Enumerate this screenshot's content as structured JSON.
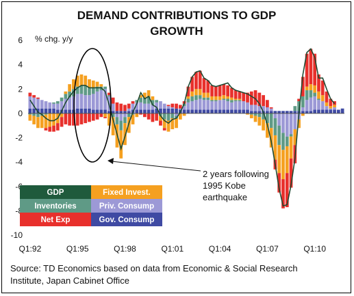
{
  "chart_data": {
    "type": "bar",
    "title_line1": "DEMAND CONTRIBUTIONS TO GDP",
    "title_line2": "GROWTH",
    "ylabel": "% chg. y/y",
    "ylim": [
      -10,
      6
    ],
    "y_ticks": [
      "6",
      "4",
      "2",
      "0",
      "-2",
      "-4",
      "-6",
      "-8",
      "-10"
    ],
    "x_ticks": [
      "Q1:92",
      "Q1:95",
      "Q1:98",
      "Q1:01",
      "Q1:04",
      "Q1:07",
      "Q1:10"
    ],
    "annotation_lines": [
      "2 years following",
      "1995 Kobe",
      "earthquake"
    ],
    "source_lines": [
      "Source: TD Economics based on data from Economic & Social Research",
      "Institute, Japan Cabinet Office"
    ],
    "legend": [
      {
        "label": "GDP",
        "color": "#1f5a3c",
        "text_color": "#ffffff"
      },
      {
        "label": "Fixed Invest.",
        "color": "#f5a020",
        "text_color": "#ffffff"
      },
      {
        "label": "Inventories",
        "color": "#5f9a86",
        "text_color": "#ffffff"
      },
      {
        "label": "Priv. Consump",
        "color": "#9c99d6",
        "text_color": "#ffffff"
      },
      {
        "label": "Net Exp",
        "color": "#e8302c",
        "text_color": "#ffffff"
      },
      {
        "label": "Gov. Consump",
        "color": "#3f4aa3",
        "text_color": "#ffffff"
      }
    ],
    "colors": {
      "fixed": "#f5a020",
      "inventories": "#5f9a86",
      "private": "#9c99d6",
      "net": "#e8302c",
      "gov": "#3f4aa3",
      "gdp": "#1f5a3c"
    },
    "quarters_start": "Q1:92",
    "series": [
      {
        "name": "Gov. Consump",
        "values": [
          0.4,
          0.4,
          0.4,
          0.4,
          0.4,
          0.4,
          0.4,
          0.3,
          0.3,
          0.3,
          0.3,
          0.3,
          0.4,
          0.4,
          0.4,
          0.4,
          0.3,
          0.3,
          0.3,
          0.3,
          0.2,
          0.2,
          0.2,
          0.2,
          0.2,
          0.2,
          0.3,
          0.3,
          0.3,
          0.3,
          0.3,
          0.3,
          0.4,
          0.4,
          0.4,
          0.4,
          0.4,
          0.4,
          0.3,
          0.3,
          0.3,
          0.3,
          0.3,
          0.3,
          0.3,
          0.3,
          0.3,
          0.3,
          0.3,
          0.3,
          0.3,
          0.3,
          0.3,
          0.3,
          0.3,
          0.3,
          0.2,
          0.2,
          0.2,
          0.2,
          0.2,
          0.2,
          0.2,
          0.2,
          0.2,
          0.2,
          0.2,
          0.2,
          0.2,
          0.2,
          0.2,
          0.2,
          0.3,
          0.3,
          0.3,
          0.3,
          0.3,
          0.3,
          0.3,
          0.4
        ]
      },
      {
        "name": "Priv. Consump",
        "values": [
          1.0,
          0.9,
          0.8,
          0.7,
          0.6,
          0.5,
          0.4,
          0.5,
          0.7,
          0.9,
          1.0,
          1.1,
          1.2,
          1.2,
          1.1,
          1.1,
          1.3,
          1.5,
          1.6,
          1.7,
          1.2,
          0.6,
          -0.3,
          -0.6,
          -0.3,
          0.2,
          0.5,
          0.6,
          0.6,
          0.5,
          0.5,
          0.4,
          0.5,
          0.6,
          0.4,
          0.2,
          0.1,
          -0.2,
          0.1,
          0.3,
          0.6,
          0.7,
          0.8,
          0.9,
          0.8,
          0.8,
          0.7,
          0.7,
          0.8,
          0.8,
          0.7,
          0.6,
          0.7,
          0.7,
          0.7,
          0.6,
          0.5,
          0.5,
          0.4,
          0.4,
          0.3,
          0.2,
          -0.4,
          -1.0,
          -1.6,
          -1.9,
          -1.7,
          -1.3,
          -0.5,
          0.3,
          0.9,
          1.1,
          1.1,
          0.8,
          0.7,
          0.3,
          0.1,
          0.2
        ]
      },
      {
        "name": "Inventories",
        "values": [
          -0.1,
          -0.2,
          -0.3,
          -0.2,
          -0.1,
          0.0,
          0.1,
          0.2,
          0.3,
          0.4,
          0.5,
          0.6,
          0.6,
          0.7,
          0.8,
          0.6,
          0.5,
          0.4,
          0.3,
          0.2,
          0.1,
          -0.3,
          -0.6,
          -0.8,
          -0.5,
          -0.3,
          -0.1,
          0.2,
          0.4,
          0.5,
          0.6,
          0.4,
          0.2,
          -0.2,
          -0.5,
          -0.6,
          -0.4,
          -0.2,
          0.0,
          0.2,
          0.3,
          0.4,
          0.4,
          0.3,
          0.2,
          0.2,
          0.1,
          0.1,
          0.0,
          0.1,
          0.2,
          0.2,
          0.1,
          0.1,
          0.0,
          0.0,
          -0.1,
          -0.2,
          -0.3,
          -0.5,
          -0.8,
          -1.2,
          -1.4,
          -1.6,
          -1.4,
          -0.8,
          -0.2,
          0.4,
          0.8,
          0.9,
          0.8,
          0.6,
          0.3,
          0.1,
          0.0,
          0.0,
          0.0,
          0.0
        ]
      },
      {
        "name": "Fixed Invest.",
        "values": [
          -0.5,
          -0.7,
          -0.9,
          -1.0,
          -1.1,
          -1.1,
          -1.0,
          -0.8,
          -0.3,
          0.2,
          0.6,
          0.8,
          0.9,
          0.9,
          0.8,
          0.7,
          0.6,
          0.4,
          0.2,
          -0.3,
          -1.0,
          -1.5,
          -1.9,
          -2.3,
          -1.8,
          -1.3,
          -0.8,
          -0.3,
          0.2,
          0.4,
          0.5,
          0.3,
          0.0,
          -0.4,
          -0.7,
          -0.9,
          -0.9,
          -0.8,
          -0.5,
          -0.2,
          0.2,
          0.4,
          0.5,
          0.5,
          0.4,
          0.4,
          0.3,
          0.3,
          0.3,
          0.3,
          0.2,
          0.2,
          0.1,
          0.1,
          0.0,
          -0.1,
          -0.3,
          -0.5,
          -0.7,
          -0.9,
          -1.2,
          -1.6,
          -2.0,
          -2.3,
          -2.4,
          -2.2,
          -1.8,
          -1.3,
          -0.7,
          -0.2,
          0.3,
          0.5,
          0.6,
          0.6,
          0.5,
          0.3,
          0.2,
          0.2
        ]
      },
      {
        "name": "Net Exp",
        "values": [
          0.3,
          0.2,
          0.1,
          0.0,
          -0.2,
          -0.4,
          -0.5,
          -0.6,
          -0.8,
          -0.9,
          -1.0,
          -1.0,
          -1.0,
          -0.9,
          -0.8,
          -0.7,
          -0.6,
          -0.5,
          -0.3,
          -0.1,
          0.2,
          0.5,
          0.7,
          0.6,
          0.5,
          0.4,
          0.2,
          0.0,
          -0.1,
          -0.3,
          -0.5,
          -0.7,
          -0.6,
          -0.4,
          -0.2,
          0.1,
          0.3,
          0.4,
          0.3,
          0.2,
          0.8,
          1.2,
          1.4,
          1.5,
          1.2,
          1.0,
          0.9,
          0.8,
          0.9,
          0.9,
          0.9,
          0.8,
          0.7,
          0.6,
          0.7,
          0.8,
          1.1,
          1.2,
          1.1,
          0.9,
          0.6,
          0.1,
          -0.8,
          -1.6,
          -2.4,
          -2.8,
          -2.4,
          -1.5,
          0.2,
          1.6,
          2.7,
          2.9,
          2.6,
          1.4,
          1.2,
          0.9,
          0.6,
          0.3
        ]
      },
      {
        "name": "GDP",
        "values": [
          1.1,
          0.6,
          0.1,
          -0.1,
          -0.4,
          -0.6,
          -0.6,
          -0.4,
          0.2,
          0.9,
          1.4,
          1.8,
          2.1,
          2.3,
          2.3,
          2.1,
          2.1,
          2.1,
          2.1,
          1.8,
          0.7,
          -0.5,
          -1.7,
          -2.9,
          -1.9,
          -0.8,
          0.1,
          0.8,
          1.7,
          1.2,
          1.4,
          0.7,
          0.5,
          -0.2,
          -0.6,
          -0.8,
          -0.5,
          -0.4,
          0.1,
          0.8,
          2.2,
          3.0,
          3.4,
          3.5,
          2.9,
          2.7,
          2.3,
          2.2,
          2.3,
          2.4,
          2.5,
          2.1,
          1.9,
          1.8,
          1.7,
          1.6,
          1.4,
          1.2,
          0.8,
          0.1,
          -0.9,
          -2.3,
          -4.2,
          -6.2,
          -7.6,
          -7.5,
          -5.9,
          -3.7,
          0.0,
          3.2,
          5.0,
          5.3,
          4.6,
          2.9,
          2.9,
          2.0,
          1.2,
          0.8
        ]
      }
    ]
  }
}
